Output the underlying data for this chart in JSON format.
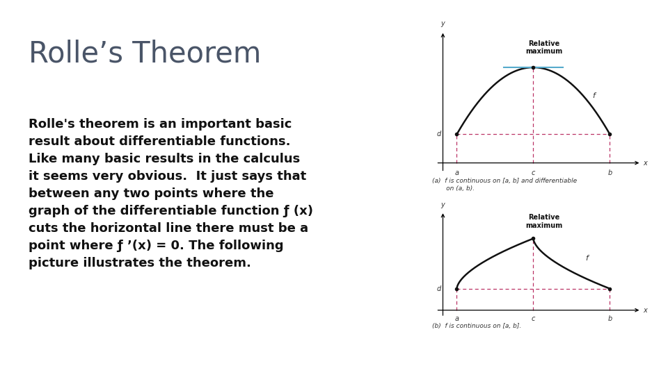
{
  "title": "Rolle’s Theorem",
  "title_color": "#4a5568",
  "title_fontsize": 30,
  "body_text_lines": [
    "Rolle's theorem is an important basic",
    "result about differentiable functions.",
    "Like many basic results in the calculus",
    "it seems very obvious.  It just says that",
    "between any two points where the",
    "graph of the differentiable function ",
    "cuts the horizontal line there must be a",
    "point where ",
    "picture illustrates the theorem."
  ],
  "body_fontsize": 13,
  "background_color": "#ffffff",
  "panel_bg": "#ffffff",
  "panel_border_color": "#555555",
  "curve_color": "#111111",
  "dashed_color": "#bb3366",
  "tangent_color": "#55aacc",
  "caption_a": "(a)  f is continuous on [a, b] and differentiable\n       on (a, b).",
  "caption_b": "(b)  f is continuous on [a, b].",
  "label_fontsize": 7,
  "axis_label_fontsize": 7,
  "rel_max_fontsize": 7
}
